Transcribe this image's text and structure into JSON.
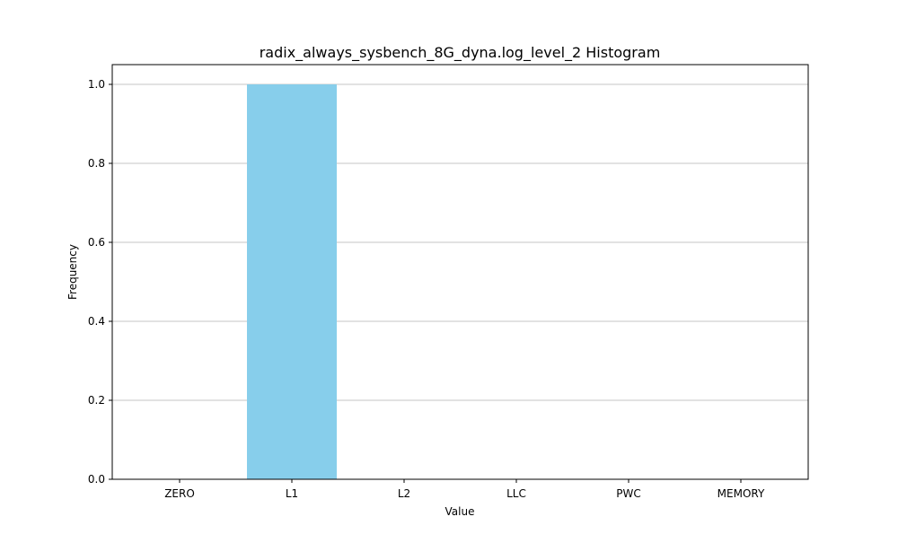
{
  "chart_data": {
    "type": "bar",
    "title": "radix_always_sysbench_8G_dyna.log_level_2 Histogram",
    "xlabel": "Value",
    "ylabel": "Frequency",
    "categories": [
      "ZERO",
      "L1",
      "L2",
      "LLC",
      "PWC",
      "MEMORY"
    ],
    "values": [
      0,
      1,
      0,
      0,
      0,
      0
    ],
    "ylim": [
      0,
      1.05
    ],
    "yticks": [
      "0.0",
      "0.2",
      "0.4",
      "0.6",
      "0.8",
      "1.0"
    ],
    "grid": "y-axis",
    "bar_color": "#87CEEB"
  }
}
